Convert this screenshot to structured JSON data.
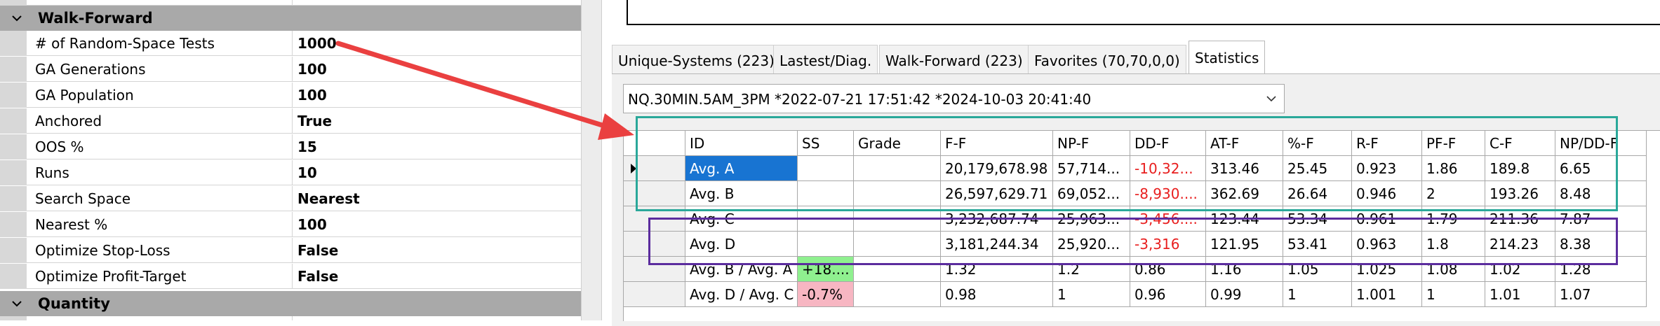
{
  "left_panel": {
    "groups": [
      {
        "title": "Walk-Forward",
        "top": 8
      },
      {
        "title": "Quantity",
        "top": 416
      }
    ],
    "properties": [
      {
        "name": "# of Random-Space Tests",
        "value": "1000"
      },
      {
        "name": "GA Generations",
        "value": "100"
      },
      {
        "name": "GA Population",
        "value": "100"
      },
      {
        "name": "Anchored",
        "value": "True"
      },
      {
        "name": "OOS %",
        "value": "15"
      },
      {
        "name": "Runs",
        "value": "10"
      },
      {
        "name": "Search Space",
        "value": "Nearest"
      },
      {
        "name": "Nearest %",
        "value": "100"
      },
      {
        "name": "Optimize Stop-Loss",
        "value": "False"
      },
      {
        "name": "Optimize Profit-Target",
        "value": "False"
      }
    ]
  },
  "tabs": [
    {
      "label": "Unique-Systems (223)"
    },
    {
      "label": "Lastest/Diag."
    },
    {
      "label": "Walk-Forward (223)"
    },
    {
      "label": "Favorites (70,70,0,0)"
    },
    {
      "label": "Statistics"
    }
  ],
  "active_tab": "Statistics",
  "combo": {
    "value": "NQ.30MIN.5AM_3PM  *2022-07-21 17:51:42 *2024-10-03 20:41:40"
  },
  "grid": {
    "columns": [
      "ID",
      "SS",
      "Grade",
      "F-F",
      "NP-F",
      "DD-F",
      "AT-F",
      "%-F",
      "R-F",
      "PF-F",
      "C-F",
      "NP/DD-F"
    ],
    "rows": [
      {
        "cells": [
          "Avg. A",
          "",
          "",
          "20,179,678.98",
          "57,714...",
          "-10,32...",
          "313.46",
          "25.45",
          "0.923",
          "1.86",
          "189.8",
          "6.65"
        ]
      },
      {
        "cells": [
          "Avg. B",
          "",
          "",
          "26,597,629.71",
          "69,052...",
          "-8,930....",
          "362.69",
          "26.64",
          "0.946",
          "2",
          "193.26",
          "8.48"
        ]
      },
      {
        "cells": [
          "Avg. C",
          "",
          "",
          "3,232,687.74",
          "25,963...",
          "-3,456....",
          "123.44",
          "53.34",
          "0.961",
          "1.79",
          "211.36",
          "7.87"
        ]
      },
      {
        "cells": [
          "Avg. D",
          "",
          "",
          "3,181,244.34",
          "25,920...",
          "-3,316",
          "121.95",
          "53.41",
          "0.963",
          "1.8",
          "214.23",
          "8.38"
        ]
      },
      {
        "cells": [
          "Avg. B / Avg. A",
          "+18....",
          "",
          "1.32",
          "1.2",
          "0.86",
          "1.16",
          "1.05",
          "1.025",
          "1.08",
          "1.02",
          "1.28"
        ]
      },
      {
        "cells": [
          "Avg. D / Avg. C",
          "-0.7%",
          "",
          "0.98",
          "1",
          "0.96",
          "0.99",
          "1",
          "1.001",
          "1",
          "1.01",
          "1.07"
        ]
      }
    ]
  },
  "colors": {
    "selection": "#1874d2",
    "negative": "#e81e1e",
    "positive_bg": "#8ff08f",
    "negative_bg": "#f7b6c2",
    "annotation_teal": "#2aa89a",
    "annotation_purple": "#5b2c9e",
    "annotation_arrow": "#ea4040"
  }
}
